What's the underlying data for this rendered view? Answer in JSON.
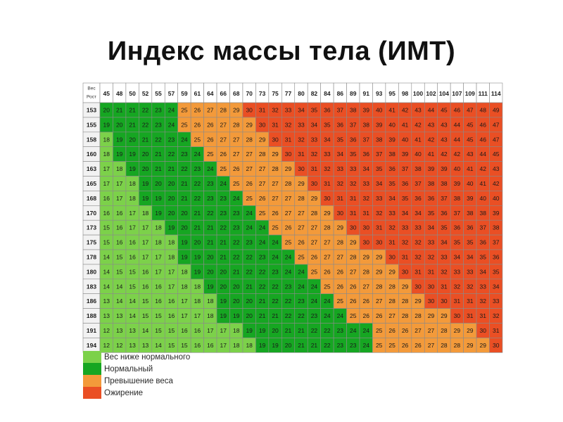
{
  "title": "Индекс массы тела (ИМТ)",
  "chart_data": {
    "type": "table",
    "corner_top": "Вес",
    "corner_bottom": "Рост",
    "weights": [
      45,
      48,
      50,
      52,
      55,
      57,
      59,
      61,
      64,
      66,
      68,
      70,
      73,
      75,
      77,
      80,
      82,
      84,
      86,
      89,
      91,
      93,
      95,
      98,
      100,
      102,
      104,
      107,
      109,
      111,
      114
    ],
    "heights": [
      153,
      155,
      158,
      160,
      163,
      165,
      168,
      170,
      173,
      175,
      178,
      180,
      183,
      186,
      188,
      191,
      194
    ],
    "values": [
      [
        20,
        21,
        21,
        22,
        23,
        24,
        25,
        26,
        27,
        28,
        29,
        30,
        31,
        32,
        33,
        34,
        35,
        36,
        37,
        38,
        39,
        40,
        41,
        42,
        43,
        44,
        45,
        46,
        47,
        48,
        49
      ],
      [
        19,
        20,
        21,
        22,
        23,
        24,
        25,
        26,
        26,
        27,
        28,
        29,
        30,
        31,
        32,
        33,
        34,
        35,
        36,
        37,
        38,
        39,
        40,
        41,
        42,
        43,
        43,
        44,
        45,
        46,
        47
      ],
      [
        18,
        19,
        20,
        21,
        22,
        23,
        24,
        25,
        26,
        27,
        27,
        28,
        29,
        30,
        31,
        32,
        33,
        34,
        35,
        36,
        37,
        38,
        39,
        40,
        41,
        42,
        43,
        44,
        45,
        46,
        47
      ],
      [
        18,
        19,
        19,
        20,
        21,
        22,
        23,
        24,
        25,
        26,
        27,
        27,
        28,
        29,
        30,
        31,
        32,
        33,
        34,
        35,
        36,
        37,
        38,
        39,
        40,
        41,
        42,
        42,
        43,
        44,
        45
      ],
      [
        17,
        18,
        19,
        20,
        21,
        21,
        22,
        23,
        24,
        25,
        26,
        27,
        27,
        28,
        29,
        30,
        31,
        32,
        33,
        33,
        34,
        35,
        36,
        37,
        38,
        39,
        39,
        40,
        41,
        42,
        43
      ],
      [
        17,
        17,
        18,
        19,
        20,
        20,
        21,
        22,
        23,
        24,
        25,
        26,
        27,
        27,
        28,
        29,
        30,
        31,
        32,
        32,
        33,
        34,
        35,
        36,
        37,
        38,
        38,
        39,
        40,
        41,
        42
      ],
      [
        16,
        17,
        18,
        19,
        19,
        20,
        21,
        22,
        23,
        23,
        24,
        25,
        26,
        27,
        27,
        28,
        29,
        30,
        31,
        31,
        32,
        33,
        34,
        35,
        36,
        36,
        37,
        38,
        39,
        40,
        40
      ],
      [
        16,
        16,
        17,
        18,
        19,
        20,
        20,
        21,
        22,
        23,
        23,
        24,
        25,
        26,
        27,
        27,
        28,
        29,
        30,
        31,
        31,
        32,
        33,
        34,
        34,
        35,
        36,
        37,
        38,
        38,
        39
      ],
      [
        15,
        16,
        17,
        17,
        18,
        19,
        20,
        21,
        21,
        22,
        23,
        24,
        24,
        25,
        26,
        27,
        27,
        28,
        29,
        30,
        30,
        31,
        32,
        33,
        33,
        34,
        35,
        36,
        36,
        37,
        38
      ],
      [
        15,
        16,
        16,
        17,
        18,
        18,
        19,
        20,
        21,
        21,
        22,
        23,
        24,
        24,
        25,
        26,
        27,
        27,
        28,
        29,
        30,
        30,
        31,
        32,
        32,
        33,
        34,
        35,
        35,
        36,
        37
      ],
      [
        14,
        15,
        16,
        17,
        17,
        18,
        19,
        19,
        20,
        21,
        22,
        22,
        23,
        24,
        24,
        25,
        26,
        27,
        27,
        28,
        29,
        29,
        30,
        31,
        32,
        32,
        33,
        34,
        34,
        35,
        36
      ],
      [
        14,
        15,
        15,
        16,
        17,
        17,
        18,
        19,
        20,
        20,
        21,
        22,
        22,
        23,
        24,
        24,
        25,
        26,
        26,
        27,
        28,
        29,
        29,
        30,
        31,
        31,
        32,
        33,
        33,
        34,
        35
      ],
      [
        14,
        14,
        15,
        16,
        16,
        17,
        18,
        18,
        19,
        20,
        20,
        21,
        22,
        22,
        23,
        24,
        24,
        25,
        26,
        26,
        27,
        28,
        28,
        29,
        30,
        30,
        31,
        32,
        32,
        33,
        34
      ],
      [
        13,
        14,
        14,
        15,
        16,
        16,
        17,
        18,
        18,
        19,
        20,
        20,
        21,
        22,
        22,
        23,
        24,
        24,
        25,
        26,
        26,
        27,
        28,
        28,
        29,
        30,
        30,
        31,
        31,
        32,
        33
      ],
      [
        13,
        13,
        14,
        15,
        15,
        16,
        17,
        17,
        18,
        19,
        19,
        20,
        21,
        21,
        22,
        22,
        23,
        24,
        24,
        25,
        26,
        26,
        27,
        28,
        28,
        29,
        29,
        30,
        31,
        31,
        32
      ],
      [
        12,
        13,
        13,
        14,
        15,
        15,
        16,
        16,
        17,
        17,
        18,
        19,
        19,
        20,
        21,
        21,
        22,
        22,
        23,
        24,
        24,
        25,
        26,
        26,
        27,
        27,
        28,
        29,
        29,
        30,
        31
      ],
      [
        12,
        12,
        13,
        13,
        14,
        15,
        15,
        16,
        16,
        17,
        18,
        18,
        19,
        19,
        20,
        21,
        21,
        22,
        23,
        23,
        24,
        25,
        25,
        26,
        26,
        27,
        28,
        28,
        29,
        29,
        30
      ]
    ],
    "categories": [
      {
        "label": "Вес ниже нормального",
        "color": "#7cd14a",
        "max_bmi": 18.5
      },
      {
        "label": "Нормальный",
        "color": "#16a622",
        "max_bmi": 25
      },
      {
        "label": "Превышение веса",
        "color": "#f39a3a",
        "max_bmi": 30
      },
      {
        "label": "Ожирение",
        "color": "#ea4f24",
        "max_bmi": 999
      }
    ]
  },
  "legend": [
    {
      "label": "Вес ниже нормального",
      "color": "#7cd14a"
    },
    {
      "label": "Нормальный",
      "color": "#16a622"
    },
    {
      "label": "Превышение веса",
      "color": "#f39a3a"
    },
    {
      "label": "Ожирение",
      "color": "#ea4f24"
    }
  ]
}
